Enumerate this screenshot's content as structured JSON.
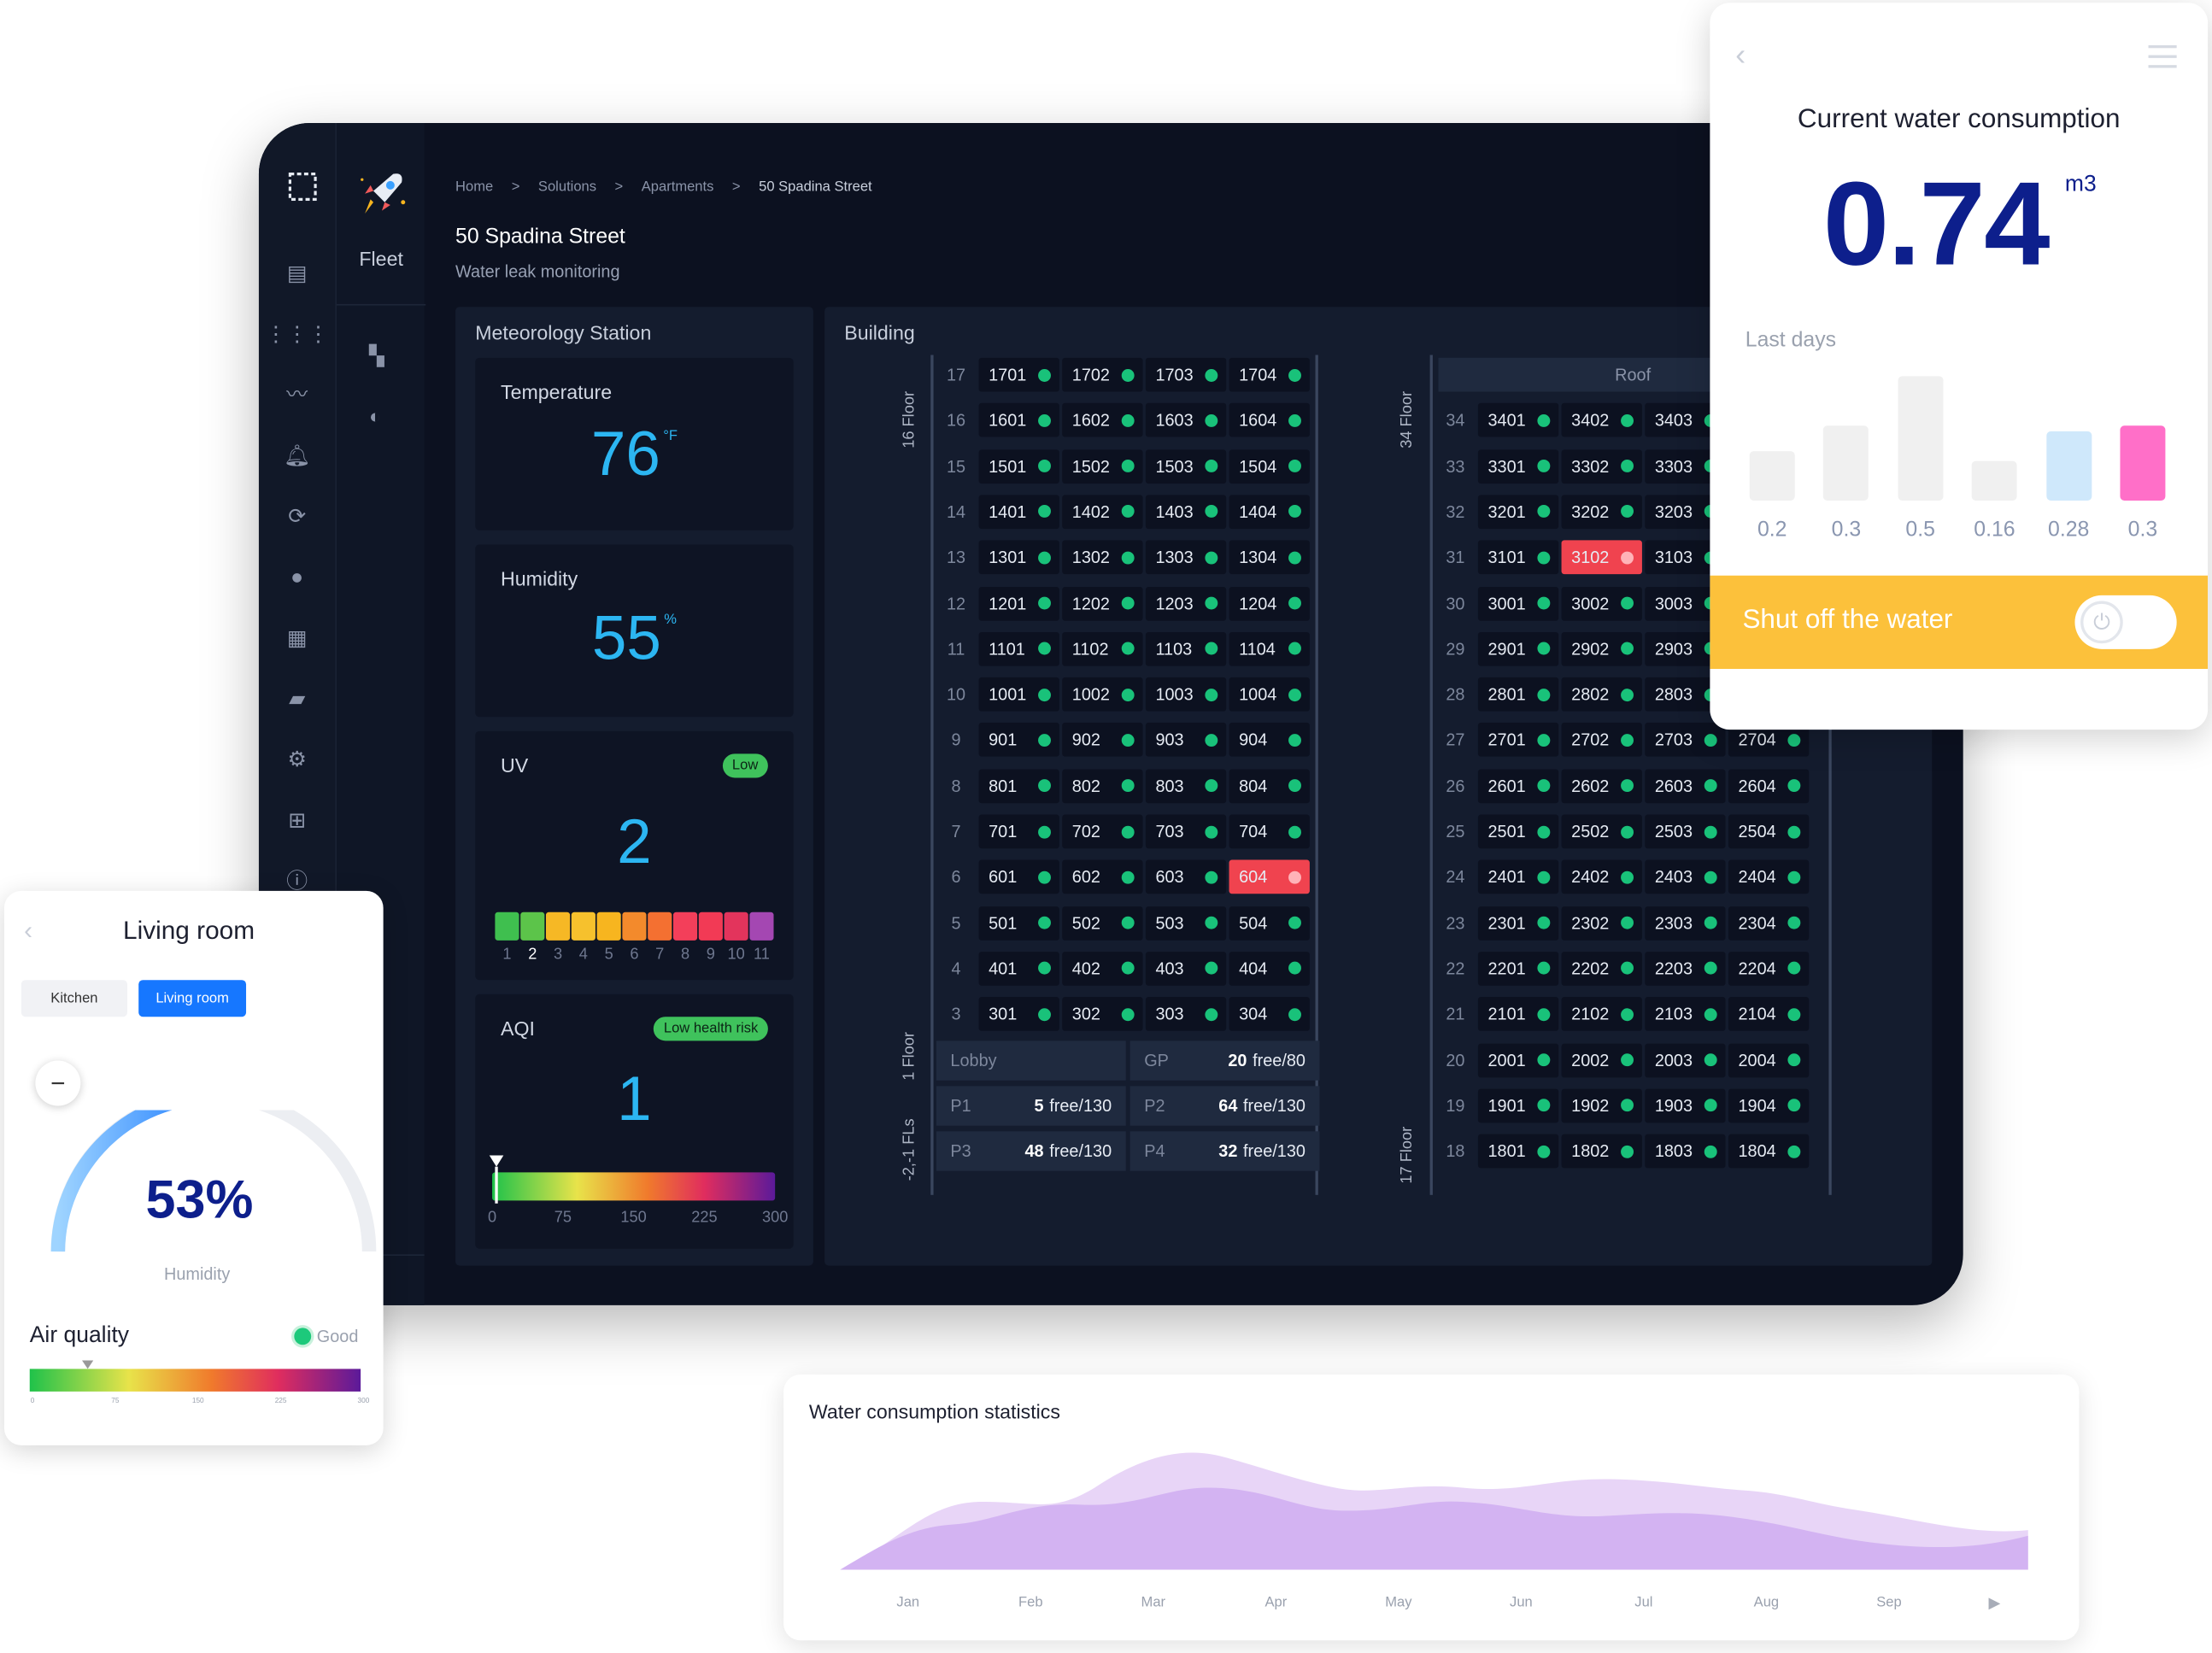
{
  "dashboard": {
    "sidebar_icons": [
      "dashboard-icon",
      "apps-grid-icon",
      "analytics-icon",
      "alarm-bell-icon",
      "refresh-icon",
      "account-icon",
      "building-icon",
      "folder-star-icon",
      "settings-gear-icon",
      "widgets-icon",
      "help-icon"
    ],
    "sub_label": "Fleet",
    "breadcrumb": [
      "Home",
      "Solutions",
      "Apartments",
      "50 Spadina Street"
    ],
    "title": "50 Spadina Street",
    "subtitle": "Water leak monitoring"
  },
  "meteo": {
    "title": "Meteorology Station",
    "temperature": {
      "label": "Temperature",
      "value": "76",
      "unit": "°F"
    },
    "humidity": {
      "label": "Humidity",
      "value": "55",
      "unit": "%"
    },
    "uv": {
      "label": "UV",
      "badge": "Low",
      "value": "2",
      "scale": [
        "1",
        "2",
        "3",
        "4",
        "5",
        "6",
        "7",
        "8",
        "9",
        "10",
        "11"
      ],
      "colors": [
        "#3fbf4f",
        "#5cc44a",
        "#f6b825",
        "#f6c12d",
        "#f7b51f",
        "#f38a2c",
        "#f47031",
        "#f33f5a",
        "#f23a55",
        "#e3345c",
        "#a447b2"
      ]
    },
    "aqi": {
      "label": "AQI",
      "badge": "Low health risk",
      "value": "1",
      "scale": [
        "0",
        "75",
        "150",
        "225",
        "300"
      ]
    }
  },
  "building": {
    "title": "Building",
    "left_tower": {
      "top_label": "16 Floor",
      "bottom_label": "1 Floor",
      "parking_label": "-2,-1 FLs",
      "floors": [
        {
          "n": "17",
          "units": [
            "1701",
            "1702",
            "1703",
            "1704"
          ]
        },
        {
          "n": "16",
          "units": [
            "1601",
            "1602",
            "1603",
            "1604"
          ]
        },
        {
          "n": "15",
          "units": [
            "1501",
            "1502",
            "1503",
            "1504"
          ]
        },
        {
          "n": "14",
          "units": [
            "1401",
            "1402",
            "1403",
            "1404"
          ]
        },
        {
          "n": "13",
          "units": [
            "1301",
            "1302",
            "1303",
            "1304"
          ]
        },
        {
          "n": "12",
          "units": [
            "1201",
            "1202",
            "1203",
            "1204"
          ]
        },
        {
          "n": "11",
          "units": [
            "1101",
            "1102",
            "1103",
            "1104"
          ]
        },
        {
          "n": "10",
          "units": [
            "1001",
            "1002",
            "1003",
            "1004"
          ]
        },
        {
          "n": "9",
          "units": [
            "901",
            "902",
            "903",
            "904"
          ]
        },
        {
          "n": "8",
          "units": [
            "801",
            "802",
            "803",
            "804"
          ]
        },
        {
          "n": "7",
          "units": [
            "701",
            "702",
            "703",
            "704"
          ]
        },
        {
          "n": "6",
          "units": [
            "601",
            "602",
            "603",
            "604"
          ],
          "alert": 3
        },
        {
          "n": "5",
          "units": [
            "501",
            "502",
            "503",
            "504"
          ]
        },
        {
          "n": "4",
          "units": [
            "401",
            "402",
            "403",
            "404"
          ]
        },
        {
          "n": "3",
          "units": [
            "301",
            "302",
            "303",
            "304"
          ]
        }
      ],
      "lobby": "Lobby",
      "gp": {
        "label": "GP",
        "count": "20",
        "suffix": "free/80"
      },
      "parking": [
        {
          "label": "P1",
          "count": "5",
          "suffix": "free/130"
        },
        {
          "label": "P2",
          "count": "64",
          "suffix": "free/130"
        },
        {
          "label": "P3",
          "count": "48",
          "suffix": "free/130"
        },
        {
          "label": "P4",
          "count": "32",
          "suffix": "free/130"
        }
      ]
    },
    "right_tower": {
      "top_label": "34 Floor",
      "bottom_label": "17 Floor",
      "roof": "Roof",
      "floors": [
        {
          "n": "34",
          "units": [
            "3401",
            "3402",
            "3403"
          ]
        },
        {
          "n": "33",
          "units": [
            "3301",
            "3302",
            "3303"
          ]
        },
        {
          "n": "32",
          "units": [
            "3201",
            "3202",
            "3203"
          ]
        },
        {
          "n": "31",
          "units": [
            "3101",
            "3102",
            "3103"
          ],
          "alert": 1
        },
        {
          "n": "30",
          "units": [
            "3001",
            "3002",
            "3003"
          ]
        },
        {
          "n": "29",
          "units": [
            "2901",
            "2902",
            "2903"
          ]
        },
        {
          "n": "28",
          "units": [
            "2801",
            "2802",
            "2803"
          ]
        },
        {
          "n": "27",
          "units": [
            "2701",
            "2702",
            "2703",
            "2704"
          ]
        },
        {
          "n": "26",
          "units": [
            "2601",
            "2602",
            "2603",
            "2604"
          ]
        },
        {
          "n": "25",
          "units": [
            "2501",
            "2502",
            "2503",
            "2504"
          ]
        },
        {
          "n": "24",
          "units": [
            "2401",
            "2402",
            "2403",
            "2404"
          ]
        },
        {
          "n": "23",
          "units": [
            "2301",
            "2302",
            "2303",
            "2304"
          ]
        },
        {
          "n": "22",
          "units": [
            "2201",
            "2202",
            "2203",
            "2204"
          ]
        },
        {
          "n": "21",
          "units": [
            "2101",
            "2102",
            "2103",
            "2104"
          ]
        },
        {
          "n": "20",
          "units": [
            "2001",
            "2002",
            "2003",
            "2004"
          ]
        },
        {
          "n": "19",
          "units": [
            "1901",
            "1902",
            "1903",
            "1904"
          ]
        },
        {
          "n": "18",
          "units": [
            "1801",
            "1802",
            "1803",
            "1804"
          ]
        }
      ]
    }
  },
  "water": {
    "title": "Current water consumption",
    "value": "0.74",
    "unit": "m3",
    "last_days_label": "Last days",
    "bars": [
      {
        "label": "0.2",
        "value": 0.2,
        "color": "#f0f0f0"
      },
      {
        "label": "0.3",
        "value": 0.3,
        "color": "#f0f0f0"
      },
      {
        "label": "0.5",
        "value": 0.5,
        "color": "#f0f0f0"
      },
      {
        "label": "0.16",
        "value": 0.16,
        "color": "#f0f0f0"
      },
      {
        "label": "0.28",
        "value": 0.28,
        "color": "#cfe8fb"
      },
      {
        "label": "0.3",
        "value": 0.3,
        "color": "#ff6fc8"
      }
    ],
    "shutoff_label": "Shut off the water"
  },
  "living": {
    "title": "Living room",
    "tabs": [
      "Kitchen",
      "Living room"
    ],
    "humidity_value": "53%",
    "humidity_label": "Humidity",
    "air_quality_label": "Air quality",
    "air_status": "Good",
    "scale": [
      "0",
      "75",
      "150",
      "225",
      "300"
    ]
  },
  "stats": {
    "title": "Water consumption statistics",
    "months": [
      "Jan",
      "Feb",
      "Mar",
      "Apr",
      "May",
      "Jun",
      "Jul",
      "Aug",
      "Sep"
    ]
  }
}
